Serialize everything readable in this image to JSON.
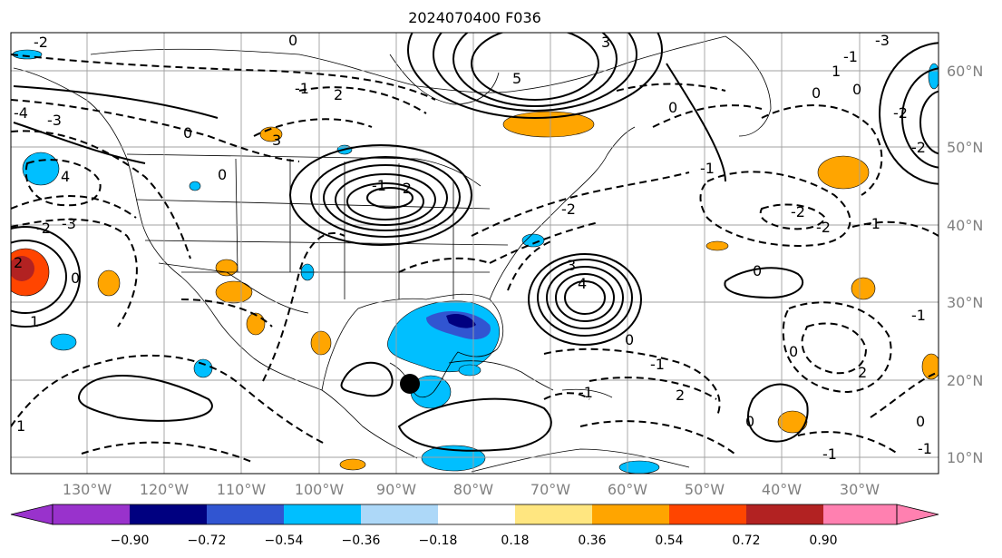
{
  "title": "2024070400 F036",
  "map": {
    "lon_ticks": [
      "130°W",
      "120°W",
      "110°W",
      "100°W",
      "90°W",
      "80°W",
      "70°W",
      "60°W",
      "50°W",
      "40°W",
      "30°W"
    ],
    "lat_ticks": [
      "60°N",
      "50°N",
      "40°N",
      "30°N",
      "20°N",
      "10°N"
    ],
    "contour_labels": [
      "-2",
      "0",
      "-1",
      "2",
      "3",
      "5",
      "0",
      "-3",
      "4",
      "-4",
      "-3",
      "-2",
      "0",
      "1",
      "2",
      "3",
      "-1",
      "-2",
      "0",
      "3",
      "4",
      "0",
      "-1",
      "-2",
      "0",
      "0",
      "-1",
      "-1",
      "0",
      "2",
      "2",
      "-1",
      "-2",
      "-1",
      "0",
      "-1",
      "0",
      "-1",
      "-2",
      "0",
      "1",
      "0",
      "-1",
      "-3",
      "-2",
      "-2",
      "1"
    ],
    "colors": {
      "orange": "#ffa500",
      "light_blue": "#00bfff",
      "blue": "#3155d1",
      "contour": "#000000",
      "grid": "#a0a0a0",
      "tick_text": "#808080"
    }
  },
  "colorbar": {
    "labels": [
      "−0.90",
      "−0.72",
      "−0.54",
      "−0.36",
      "−0.18",
      "0.18",
      "0.36",
      "0.54",
      "0.72",
      "0.90"
    ],
    "colors": [
      "#9932cc",
      "#000080",
      "#3155d1",
      "#00bfff",
      "#add8f8",
      "#ffffff",
      "#ffe680",
      "#ffa500",
      "#ff4500",
      "#b22222",
      "#ff80b0",
      "#ff80b0"
    ]
  }
}
